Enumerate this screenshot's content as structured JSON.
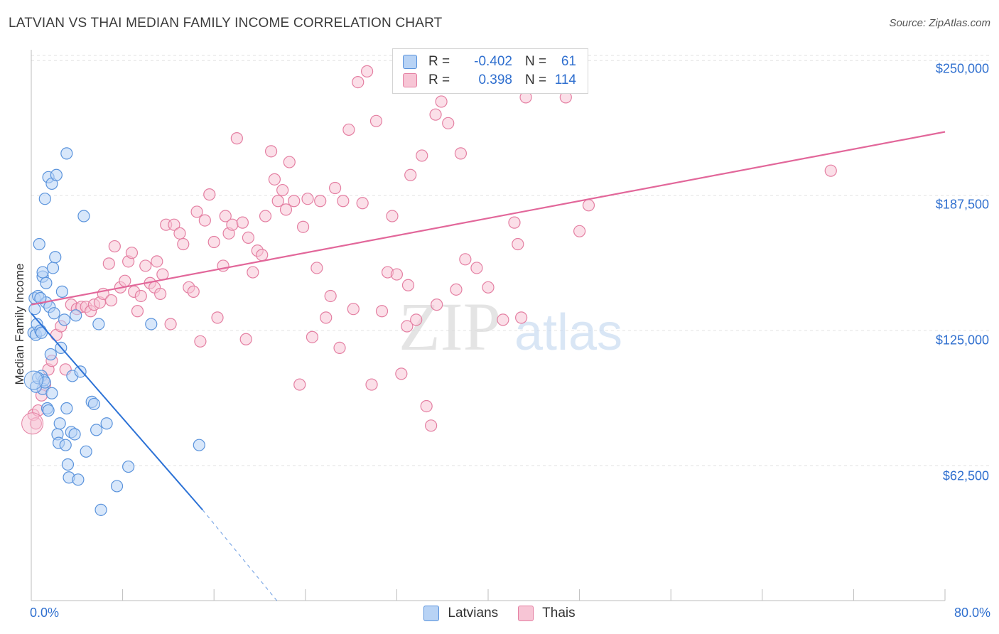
{
  "header": {
    "title": "LATVIAN VS THAI MEDIAN FAMILY INCOME CORRELATION CHART",
    "source": "Source: ZipAtlas.com"
  },
  "legend": {
    "r_label": "R =",
    "n_label": "N =",
    "latvians": {
      "r": "-0.402",
      "n": "61"
    },
    "thais": {
      "r": "0.398",
      "n": "114"
    }
  },
  "colors": {
    "latvians_fill": "#b8d3f5",
    "latvians_stroke": "#5a93dc",
    "latvians_line": "#2c72d6",
    "thais_fill": "#f7c5d5",
    "thais_stroke": "#e47fa2",
    "thais_line": "#e2679a"
  },
  "watermark": {
    "zip": "ZIP",
    "atlas": "atlas"
  },
  "chart_data": {
    "type": "scatter",
    "title": "LATVIAN VS THAI MEDIAN FAMILY INCOME CORRELATION CHART",
    "xlabel": "",
    "ylabel": "Median Family Income",
    "xlim": [
      0,
      80
    ],
    "ylim": [
      0,
      255000
    ],
    "x_tick_labels": [
      "0.0%",
      "80.0%"
    ],
    "y_ticks": [
      62500,
      125000,
      187500,
      250000
    ],
    "y_tick_labels": [
      "$62,500",
      "$125,000",
      "$187,500",
      "$250,000"
    ],
    "grid": true,
    "legend_position": "bottom-center",
    "series": [
      {
        "name": "Latvians",
        "r": -0.402,
        "n": 61,
        "trend": {
          "x": [
            0,
            15
          ],
          "y": [
            133000,
            42000
          ],
          "dashed_to": [
            21.5,
            0
          ]
        },
        "points": [
          [
            0.2,
            124000
          ],
          [
            0.3,
            140000
          ],
          [
            0.3,
            135000
          ],
          [
            0.4,
            123000
          ],
          [
            0.5,
            128000
          ],
          [
            0.6,
            141000
          ],
          [
            0.7,
            165000
          ],
          [
            0.8,
            125000
          ],
          [
            0.9,
            124000
          ],
          [
            0.9,
            104000
          ],
          [
            1.0,
            150000
          ],
          [
            1.0,
            152000
          ],
          [
            1.0,
            98000
          ],
          [
            1.1,
            102000
          ],
          [
            1.2,
            186000
          ],
          [
            1.3,
            147000
          ],
          [
            1.3,
            138000
          ],
          [
            1.4,
            89000
          ],
          [
            1.5,
            88000
          ],
          [
            1.5,
            196000
          ],
          [
            1.6,
            136000
          ],
          [
            1.7,
            114000
          ],
          [
            1.8,
            193000
          ],
          [
            1.8,
            96000
          ],
          [
            1.9,
            154000
          ],
          [
            2.0,
            133000
          ],
          [
            2.1,
            159000
          ],
          [
            2.2,
            197000
          ],
          [
            2.3,
            77000
          ],
          [
            2.4,
            73000
          ],
          [
            2.5,
            82000
          ],
          [
            2.6,
            117000
          ],
          [
            2.7,
            143000
          ],
          [
            2.9,
            130000
          ],
          [
            3.0,
            72000
          ],
          [
            3.1,
            207000
          ],
          [
            3.1,
            89000
          ],
          [
            3.2,
            63000
          ],
          [
            3.3,
            57000
          ],
          [
            3.5,
            78000
          ],
          [
            3.6,
            104000
          ],
          [
            3.8,
            77000
          ],
          [
            3.9,
            132000
          ],
          [
            4.1,
            56000
          ],
          [
            4.3,
            106000
          ],
          [
            4.6,
            178000
          ],
          [
            4.8,
            69000
          ],
          [
            5.3,
            92000
          ],
          [
            5.5,
            91000
          ],
          [
            5.7,
            79000
          ],
          [
            5.9,
            128000
          ],
          [
            6.1,
            42000
          ],
          [
            6.6,
            82000
          ],
          [
            7.5,
            53000
          ],
          [
            8.5,
            62000
          ],
          [
            10.5,
            128000
          ],
          [
            14.7,
            72000
          ],
          [
            0.4,
            99000
          ],
          [
            0.6,
            103000
          ],
          [
            1.2,
            101000
          ],
          [
            0.8,
            140000
          ]
        ]
      },
      {
        "name": "Thais",
        "r": 0.398,
        "n": 114,
        "trend": {
          "x": [
            0,
            80
          ],
          "y": [
            137000,
            217000
          ]
        },
        "points": [
          [
            0.2,
            86000
          ],
          [
            0.4,
            82000
          ],
          [
            0.6,
            88000
          ],
          [
            0.9,
            95000
          ],
          [
            1.2,
            100000
          ],
          [
            1.5,
            107000
          ],
          [
            1.8,
            111000
          ],
          [
            2.2,
            123000
          ],
          [
            2.6,
            127000
          ],
          [
            3.0,
            107000
          ],
          [
            3.5,
            137000
          ],
          [
            4.0,
            135000
          ],
          [
            4.4,
            136000
          ],
          [
            4.8,
            136000
          ],
          [
            5.2,
            134000
          ],
          [
            5.5,
            137000
          ],
          [
            6.0,
            138000
          ],
          [
            6.3,
            142000
          ],
          [
            6.8,
            156000
          ],
          [
            7.0,
            139000
          ],
          [
            7.3,
            164000
          ],
          [
            7.8,
            145000
          ],
          [
            8.2,
            148000
          ],
          [
            8.5,
            157000
          ],
          [
            8.8,
            161000
          ],
          [
            9.0,
            143000
          ],
          [
            9.3,
            134000
          ],
          [
            9.6,
            141000
          ],
          [
            10.0,
            155000
          ],
          [
            10.4,
            147000
          ],
          [
            10.8,
            145000
          ],
          [
            11.0,
            157000
          ],
          [
            11.3,
            142000
          ],
          [
            11.5,
            151000
          ],
          [
            11.8,
            174000
          ],
          [
            12.2,
            128000
          ],
          [
            12.5,
            174000
          ],
          [
            13.0,
            170000
          ],
          [
            13.3,
            165000
          ],
          [
            13.8,
            145000
          ],
          [
            14.2,
            143000
          ],
          [
            14.5,
            180000
          ],
          [
            14.8,
            120000
          ],
          [
            15.2,
            176000
          ],
          [
            15.6,
            188000
          ],
          [
            16.0,
            166000
          ],
          [
            16.3,
            131000
          ],
          [
            16.8,
            155000
          ],
          [
            17.0,
            178000
          ],
          [
            17.3,
            170000
          ],
          [
            17.6,
            174000
          ],
          [
            18.0,
            214000
          ],
          [
            18.5,
            175000
          ],
          [
            18.8,
            121000
          ],
          [
            19.0,
            168000
          ],
          [
            19.4,
            152000
          ],
          [
            19.8,
            162000
          ],
          [
            20.2,
            160000
          ],
          [
            20.5,
            178000
          ],
          [
            21.0,
            208000
          ],
          [
            21.3,
            195000
          ],
          [
            21.6,
            185000
          ],
          [
            22.0,
            190000
          ],
          [
            22.3,
            181000
          ],
          [
            22.6,
            203000
          ],
          [
            23.0,
            185000
          ],
          [
            23.5,
            100000
          ],
          [
            23.8,
            173000
          ],
          [
            24.2,
            186000
          ],
          [
            24.6,
            122000
          ],
          [
            25.0,
            154000
          ],
          [
            25.3,
            185000
          ],
          [
            25.8,
            131000
          ],
          [
            26.2,
            141000
          ],
          [
            26.6,
            191000
          ],
          [
            27.0,
            117000
          ],
          [
            27.3,
            185000
          ],
          [
            27.8,
            218000
          ],
          [
            28.2,
            135000
          ],
          [
            28.6,
            240000
          ],
          [
            29.0,
            184000
          ],
          [
            29.4,
            245000
          ],
          [
            29.8,
            100000
          ],
          [
            30.2,
            222000
          ],
          [
            30.7,
            134000
          ],
          [
            31.2,
            152000
          ],
          [
            31.6,
            178000
          ],
          [
            32.0,
            151000
          ],
          [
            32.4,
            105000
          ],
          [
            32.9,
            127000
          ],
          [
            33.2,
            197000
          ],
          [
            33.7,
            130000
          ],
          [
            34.2,
            206000
          ],
          [
            34.6,
            90000
          ],
          [
            35.0,
            81000
          ],
          [
            35.4,
            225000
          ],
          [
            35.9,
            231000
          ],
          [
            36.5,
            221000
          ],
          [
            37.2,
            144000
          ],
          [
            37.6,
            207000
          ],
          [
            38.0,
            158000
          ],
          [
            39.0,
            154000
          ],
          [
            40.0,
            145000
          ],
          [
            41.3,
            130000
          ],
          [
            42.3,
            175000
          ],
          [
            42.6,
            165000
          ],
          [
            42.9,
            131000
          ],
          [
            43.3,
            233000
          ],
          [
            46.8,
            233000
          ],
          [
            48.0,
            171000
          ],
          [
            48.8,
            183000
          ],
          [
            70.0,
            199000
          ],
          [
            35.5,
            137000
          ],
          [
            33.0,
            146000
          ]
        ]
      }
    ]
  }
}
